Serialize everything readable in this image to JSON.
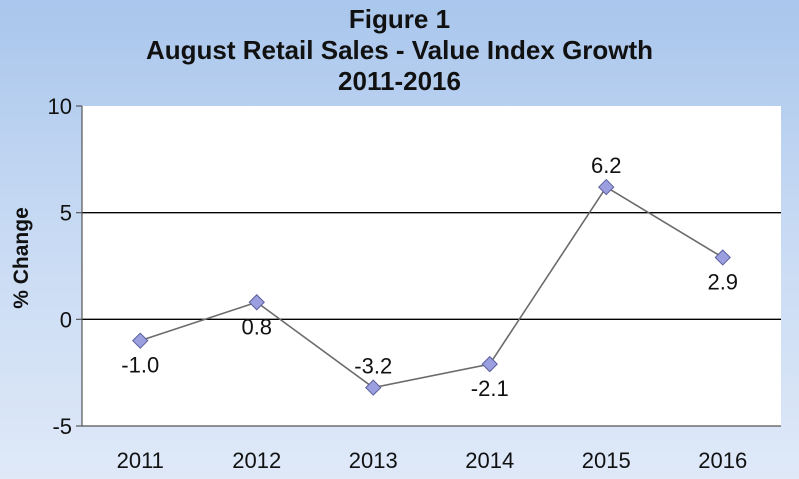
{
  "chart_data": {
    "type": "line",
    "title_lines": [
      "Figure 1",
      "August Retail Sales - Value Index Growth",
      "2011-2016"
    ],
    "ylabel": "% Change",
    "xlabel": "",
    "categories": [
      "2011",
      "2012",
      "2013",
      "2014",
      "2015",
      "2016"
    ],
    "series": [
      {
        "values": [
          -1.0,
          0.8,
          -3.2,
          -2.1,
          6.2,
          2.9
        ],
        "data_labels": [
          "-1.0",
          "0.8",
          "-3.2",
          "-2.1",
          "6.2",
          "2.9"
        ],
        "data_label_side": [
          "below",
          "below",
          "above",
          "below",
          "above",
          "below"
        ],
        "marker": "diamond",
        "marker_color": "#9b9fe0",
        "line_color": "#6b6b6b"
      }
    ],
    "ylim": [
      -5,
      10
    ],
    "yticks": [
      -5,
      0,
      5,
      10
    ],
    "ytick_labels": [
      "-5",
      "0",
      "5",
      "10"
    ],
    "horizontal_gridlines": [
      0,
      5
    ],
    "legend": "none",
    "plot_background": "#ffffff",
    "page_background": "#b7cff0"
  }
}
